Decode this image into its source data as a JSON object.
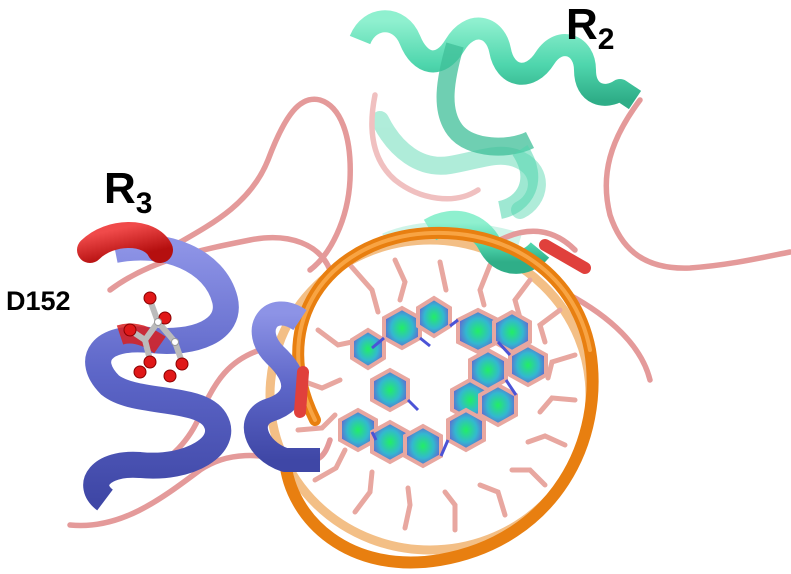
{
  "labels": {
    "r2": {
      "text": "R",
      "subscript": "2"
    },
    "r3": {
      "text": "R",
      "subscript": "3"
    },
    "residue": "D152"
  },
  "colors": {
    "coil": "#e49a9a",
    "helix_r2": "#4fd6ad",
    "helix_r3": "#5d66c8",
    "helix_highlight": "#d81f1f",
    "dna_backbone": "#e87f10",
    "dna_backbone_far": "#f3bf86",
    "base_ring_center": "#22dd55",
    "base_ring_edge": "#6a5acd",
    "base_outline": "#e8a7a0"
  }
}
